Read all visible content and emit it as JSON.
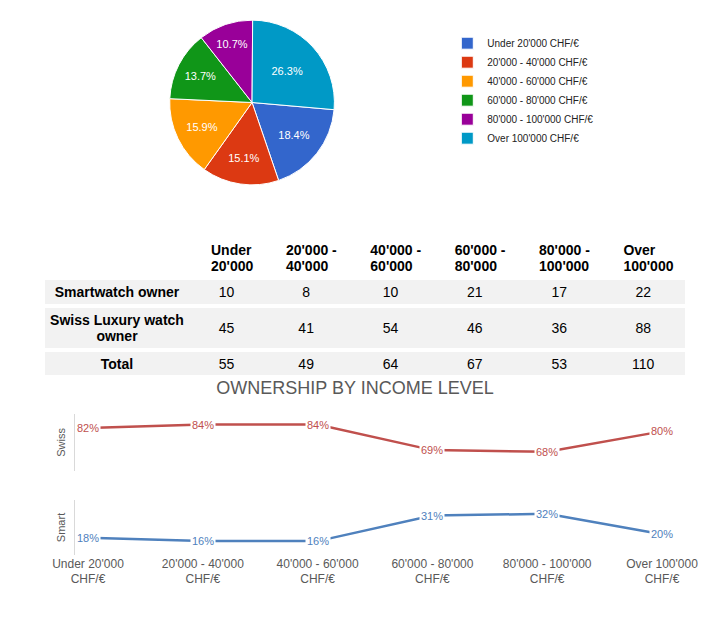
{
  "chart_data": [
    {
      "type": "pie",
      "categories": [
        "Under 20'000 CHF/€",
        "20'000 - 40'000 CHF/€",
        "40'000 - 60'000 CHF/€",
        "60'000 - 80'000 CHF/€",
        "80'000 - 100'000 CHF/€",
        "Over 100'000 CHF/€"
      ],
      "values": [
        18.4,
        15.1,
        15.9,
        13.7,
        10.7,
        26.3
      ],
      "value_labels": [
        "18.4%",
        "15.1%",
        "15.9%",
        "13.7%",
        "10.7%",
        "26.3%"
      ],
      "colors": [
        "#3366cc",
        "#dc3912",
        "#ff9900",
        "#109618",
        "#990099",
        "#0099c6"
      ],
      "data_labels": true,
      "legend": "right"
    },
    {
      "type": "line",
      "title": "OWNERSHIP BY INCOME LEVEL",
      "categories": [
        "Under 20'000 CHF/€",
        "20'000 - 40'000 CHF/€",
        "40'000 - 60'000 CHF/€",
        "60'000 - 80'000 CHF/€",
        "80'000 - 100'000 CHF/€",
        "Over 100'000 CHF/€"
      ],
      "ylabel": "Swiss",
      "y2label": "Smart",
      "ylim": [
        57,
        90
      ],
      "y2lim": [
        8,
        40
      ],
      "tick_labels": "x",
      "grid": false,
      "data_labels": true,
      "series": [
        {
          "name": "Swiss",
          "color": "#c0504d",
          "values": [
            82,
            84,
            84,
            69,
            68,
            80
          ],
          "value_labels": [
            "82%",
            "84%",
            "84%",
            "69%",
            "68%",
            "80%"
          ]
        },
        {
          "name": "Smart",
          "color": "#4f81bd",
          "axis": "y2",
          "values": [
            18,
            16,
            16,
            31,
            32,
            20
          ],
          "value_labels": [
            "18%",
            "16%",
            "16%",
            "31%",
            "32%",
            "20%"
          ]
        }
      ]
    }
  ],
  "table": {
    "header": [
      [
        "Under",
        "20'000"
      ],
      [
        "20'000 -",
        "40'000"
      ],
      [
        "40'000 -",
        "60'000"
      ],
      [
        "60'000 -",
        "80'000"
      ],
      [
        "80'000 -",
        "100'000"
      ],
      [
        "Over",
        "100'000"
      ]
    ],
    "rows": [
      {
        "label": "Smartwatch owner",
        "values": [
          10,
          8,
          10,
          21,
          17,
          22
        ]
      },
      {
        "label": "Swiss Luxury watch owner",
        "values": [
          45,
          41,
          54,
          46,
          36,
          88
        ]
      },
      {
        "label": "Total",
        "values": [
          55,
          49,
          64,
          67,
          53,
          110
        ]
      }
    ]
  }
}
